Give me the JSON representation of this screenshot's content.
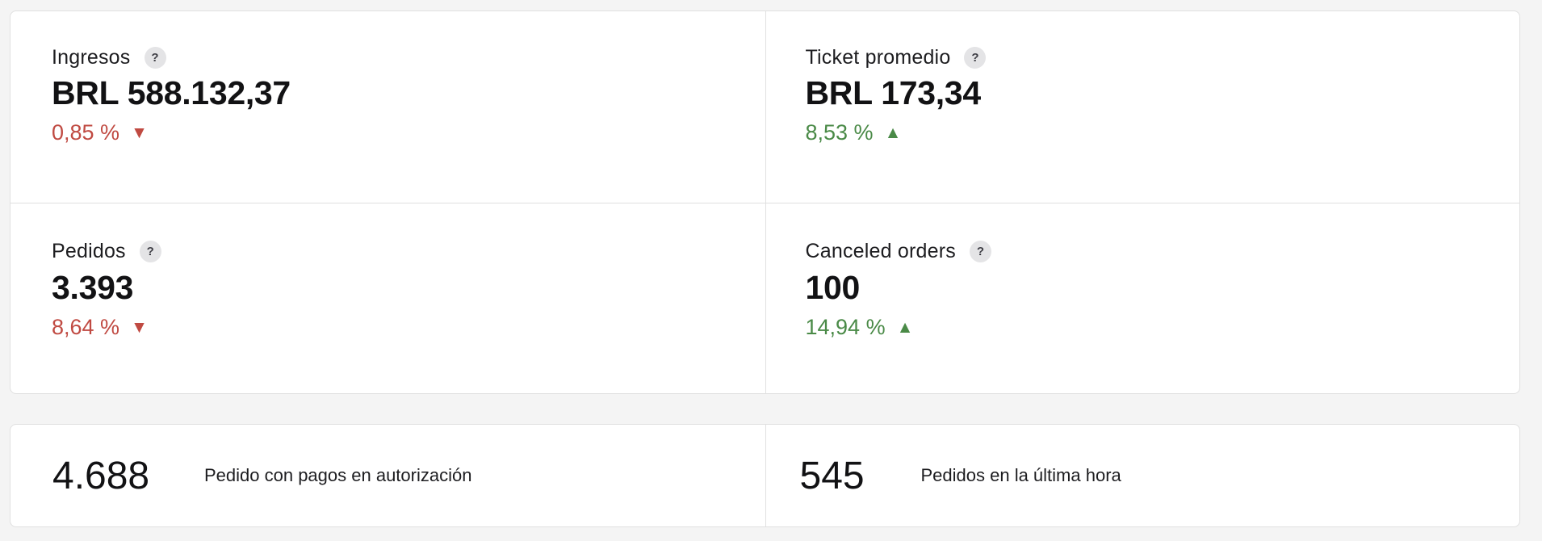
{
  "colors": {
    "page_background": "#f4f4f4",
    "card_background": "#ffffff",
    "card_border": "#e0e0e0",
    "text_primary": "#121214",
    "text_label": "#1d1d20",
    "negative": "#c04a42",
    "positive": "#4a8a47",
    "help_badge_background": "#e4e4e6",
    "help_badge_foreground": "#3f3f46"
  },
  "icons": {
    "help": "?",
    "triangle_up": "▲",
    "triangle_down": "▼"
  },
  "stats": [
    {
      "label": "Ingresos",
      "value": "BRL 588.132,37",
      "delta": "0,85 %",
      "direction": "down"
    },
    {
      "label": "Ticket promedio",
      "value": "BRL 173,34",
      "delta": "8,53 %",
      "direction": "up"
    },
    {
      "label": "Pedidos",
      "value": "3.393",
      "delta": "8,64 %",
      "direction": "down"
    },
    {
      "label": "Canceled orders",
      "value": "100",
      "delta": "14,94 %",
      "direction": "up"
    }
  ],
  "summary": [
    {
      "value": "4.688",
      "label": "Pedido con pagos en autorización"
    },
    {
      "value": "545",
      "label": "Pedidos en la última hora"
    }
  ]
}
